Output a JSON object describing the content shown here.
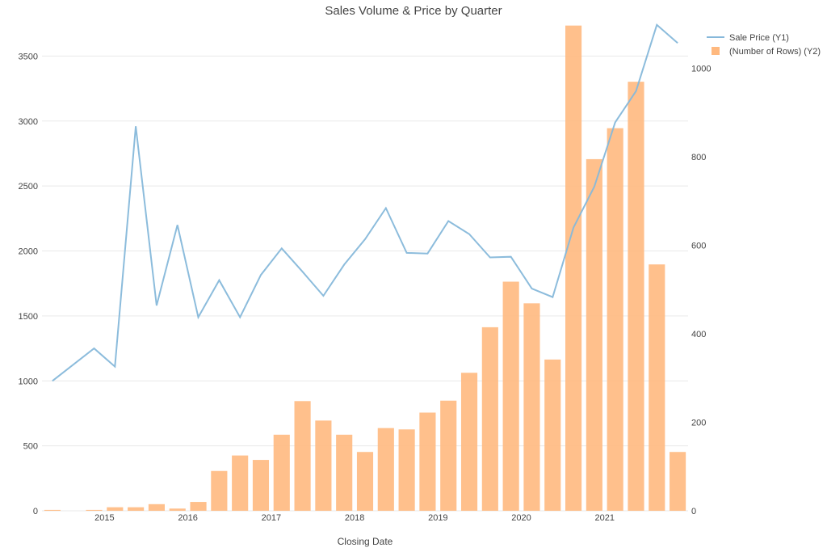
{
  "chart_data": {
    "type": "bar+line",
    "title": "Sales Volume & Price by Quarter",
    "xlabel": "Closing Date",
    "ylabel": "",
    "y2label": "",
    "ylim": [
      0,
      3750
    ],
    "y2lim": [
      0,
      1000
    ],
    "x_tick_labels": [
      "2015",
      "2016",
      "2017",
      "2018",
      "2019",
      "2020",
      "2021"
    ],
    "y_tick_labels": [
      "0",
      "500",
      "1000",
      "1500",
      "2000",
      "2500",
      "3000",
      "3500"
    ],
    "y2_tick_labels": [
      "0",
      "200",
      "400",
      "600",
      "800",
      "1000"
    ],
    "grid": true,
    "legend_position": "top-right",
    "colors": {
      "line": "#86b8da",
      "bar": "#ffb97f"
    },
    "x": [
      "2014-Q2",
      "2014-Q3",
      "2014-Q4",
      "2015-Q1",
      "2015-Q2",
      "2015-Q3",
      "2015-Q4",
      "2016-Q1",
      "2016-Q2",
      "2016-Q3",
      "2016-Q4",
      "2017-Q1",
      "2017-Q2",
      "2017-Q3",
      "2017-Q4",
      "2018-Q1",
      "2018-Q2",
      "2018-Q3",
      "2018-Q4",
      "2019-Q1",
      "2019-Q2",
      "2019-Q3",
      "2019-Q4",
      "2020-Q1",
      "2020-Q2",
      "2020-Q3",
      "2020-Q4",
      "2021-Q1",
      "2021-Q2",
      "2021-Q3",
      "2021-Q4"
    ],
    "series": [
      {
        "name": "Sale Price (Y1)",
        "type": "line",
        "axis": "y1",
        "values": [
          1000,
          1125,
          1250,
          1110,
          2960,
          1580,
          2200,
          1490,
          1775,
          1490,
          1815,
          2020,
          1840,
          1655,
          1895,
          2090,
          2330,
          1985,
          1980,
          2230,
          2130,
          1950,
          1955,
          1710,
          1645,
          2180,
          2495,
          2990,
          3230,
          3740,
          3600
        ]
      },
      {
        "name": "(Number of Rows) (Y2)",
        "type": "bar",
        "axis": "y2",
        "values": [
          2,
          0,
          2,
          8,
          8,
          15,
          5,
          20,
          90,
          125,
          115,
          172,
          248,
          204,
          172,
          133,
          187,
          184,
          222,
          249,
          312,
          415,
          518,
          469,
          342,
          1097,
          795,
          865,
          970,
          557,
          133
        ]
      }
    ]
  }
}
